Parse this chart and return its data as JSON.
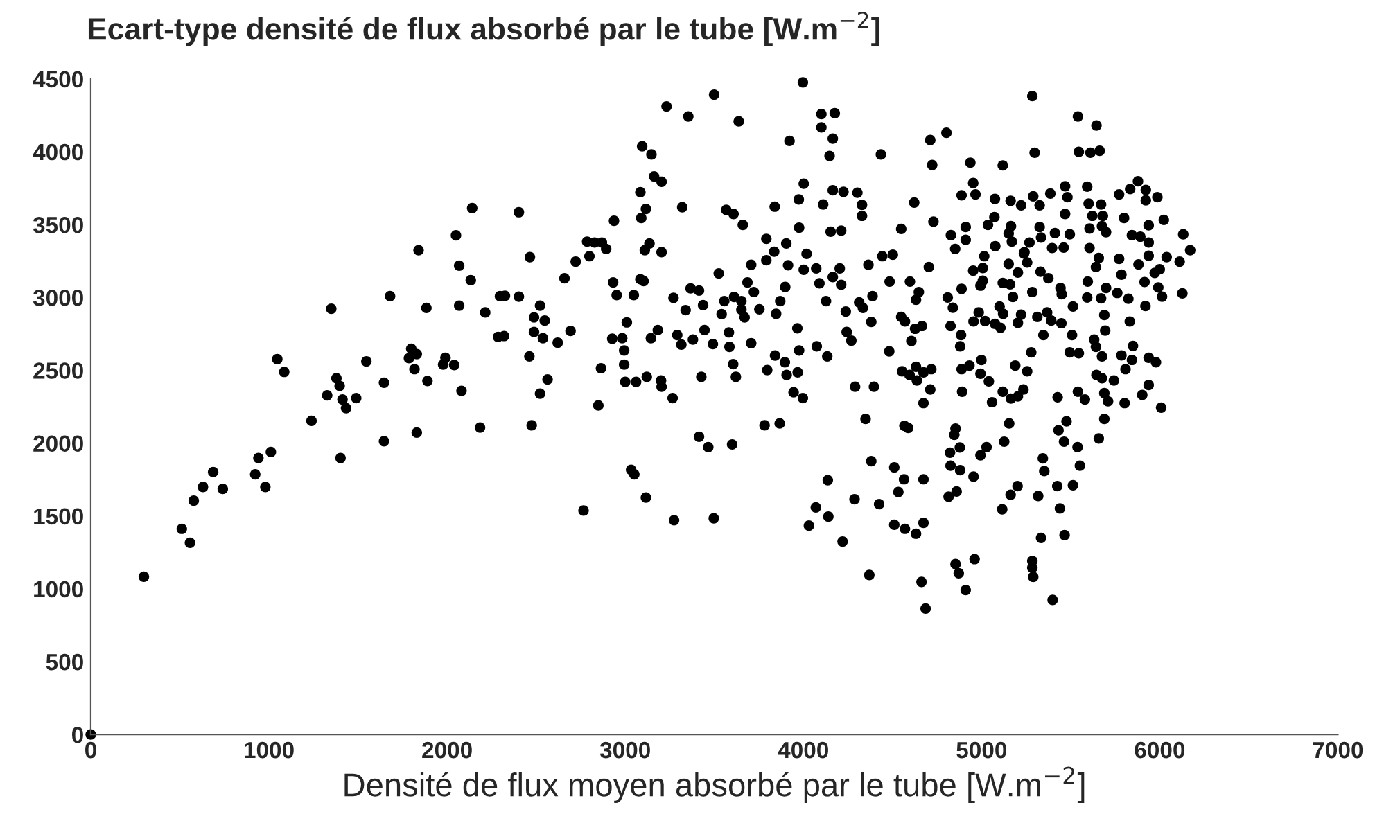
{
  "chart_data": {
    "type": "scatter",
    "title": "Ecart-type densité de flux absorbé par le tube [W.m$^{−2}$]",
    "xlabel": "Densité de flux moyen absorbé par le tube [W.m$^{−2}$]",
    "xlim": [
      0,
      7000
    ],
    "xticks": [
      0,
      1000,
      2000,
      3000,
      4000,
      5000,
      6000,
      7000
    ],
    "ylim": [
      0,
      4500
    ],
    "yticks": [
      0,
      500,
      1000,
      1500,
      2000,
      2500,
      3000,
      3500,
      4000,
      4500
    ],
    "grid": false,
    "marker": "circle",
    "series": [
      {
        "color": "#000000",
        "x": [
          0,
          298,
          511,
          557,
          578,
          630,
          687,
          741,
          923,
          941,
          980,
          1011,
          1047,
          1086,
          1239,
          1327,
          1350,
          1379,
          1397,
          1402,
          1413,
          1433,
          1490,
          1547,
          1646,
          1646,
          1680,
          1786,
          1799,
          1830,
          1817,
          1830,
          1840,
          1884,
          1890,
          1978,
          1991,
          2040,
          2050,
          2068,
          2068,
          2081,
          2133,
          2141,
          2185,
          2214,
          2286,
          2297,
          2403,
          2325,
          2403,
          2320,
          2465,
          2462,
          2475,
          2522,
          2488,
          2548,
          2488,
          2538,
          2522,
          2564,
          2621,
          2693,
          2659,
          2722,
          2786,
          2799,
          2828,
          2869,
          2893,
          2937,
          2932,
          2952,
          2927,
          2983,
          3009,
          2994,
          2994,
          3000,
          3061,
          2864,
          2849,
          2766,
          3033,
          3051,
          3116,
          3095,
          3147,
          3162,
          3204,
          3085,
          3116,
          3090,
          3136,
          3110,
          3204,
          3085,
          3103,
          3048,
          3144,
          3183,
          3121,
          3201,
          3204,
          3266,
          3232,
          3354,
          3499,
          3637,
          3320,
          3271,
          3339,
          3292,
          3315,
          3380,
          3367,
          3414,
          3437,
          3445,
          3427,
          3492,
          3414,
          3466,
          3600,
          3274,
          3497,
          3525,
          3541,
          3556,
          3582,
          3585,
          3606,
          3621,
          3567,
          3608,
          3660,
          3611,
          3652,
          3652,
          3670,
          3686,
          3722,
          3707,
          3707,
          3753,
          3792,
          3792,
          3836,
          3839,
          3904,
          3914,
          3898,
          3870,
          3847,
          3797,
          3841,
          3896,
          3906,
          3968,
          3945,
          3997,
          3782,
          3867,
          3922,
          3997,
          3974,
          4002,
          3976,
          4018,
          4002,
          3966,
          3976,
          4072,
          4090,
          4127,
          4075,
          4134,
          4101,
          4176,
          4101,
          4165,
          4147,
          4111,
          4165,
          4225,
          4303,
          4329,
          4329,
          4153,
          4212,
          4204,
          4165,
          4212,
          4238,
          4243,
          4269,
          4313,
          4334,
          4381,
          4388,
          4365,
          4435,
          4443,
          4502,
          4484,
          4482,
          4290,
          4396,
          4349,
          4137,
          4070,
          4031,
          4140,
          4220,
          4287,
          4381,
          4425,
          4370,
          4510,
          4565,
          4533,
          4510,
          4570,
          4632,
          4674,
          4674,
          4663,
          4686,
          4622,
          4549,
          4598,
          4648,
          4632,
          4549,
          4570,
          4627,
          4666,
          4606,
          4554,
          4596,
          4632,
          4637,
          4674,
          4718,
          4712,
          4674,
          4567,
          4588,
          4712,
          4723,
          4730,
          4704,
          4803,
          4937,
          5119,
          5285,
          5298,
          5541,
          5645,
          5546,
          5611,
          5663,
          4888,
          4953,
          4966,
          5075,
          5163,
          5222,
          5290,
          5326,
          5386,
          5469,
          5482,
          5593,
          5601,
          5671,
          5772,
          5834,
          5878,
          5922,
          5922,
          5987,
          4828,
          4852,
          4911,
          4911,
          5036,
          5072,
          5077,
          5152,
          5165,
          5170,
          5241,
          5269,
          5326,
          5334,
          5396,
          5412,
          5461,
          5469,
          5495,
          5606,
          5606,
          5622,
          5681,
          5676,
          5699,
          5658,
          5642,
          5772,
          5800,
          5844,
          5891,
          5938,
          5938,
          6023,
          6132,
          6171,
          6039,
          6112,
          5938,
          6000,
          5972,
          5881,
          5785,
          5915,
          5992,
          6013,
          6127,
          5920,
          5824,
          5762,
          5699,
          5671,
          5593,
          5596,
          5513,
          5450,
          5443,
          5375,
          5331,
          5285,
          5256,
          5238,
          5204,
          5176,
          5160,
          5119,
          5152,
          5015,
          5007,
          5007,
          4994,
          4953,
          4888,
          4810,
          4839,
          4984,
          4955,
          5020,
          5101,
          5121,
          5075,
          5106,
          5204,
          5222,
          5313,
          5368,
          5391,
          5448,
          5347,
          5508,
          5632,
          5689,
          5694,
          5642,
          5832,
          5850,
          5676,
          5495,
          5546,
          5785,
          5844,
          5938,
          5979,
          5808,
          5645,
          5676,
          5743,
          5938,
          5902,
          5803,
          5710,
          5689,
          5580,
          5541,
          5427,
          5235,
          5204,
          5165,
          5119,
          5059,
          4891,
          5041,
          4994,
          4888,
          4999,
          4932,
          5189,
          5256,
          5279,
          4885,
          4880,
          4826,
          6008,
          5689,
          5658,
          5477,
          5432,
          5463,
          5539,
          5552,
          5513,
          5425,
          5440,
          5466,
          5334,
          5318,
          5352,
          5344,
          5155,
          5127,
          5202,
          5163,
          5116,
          5028,
          4994,
          4955,
          4880,
          4826,
          4823,
          4878,
          4847,
          4854,
          4815,
          4860,
          4854,
          4872,
          4911,
          4961,
          5285,
          5285,
          5290,
          5399
        ],
        "values": [
          0,
          1083,
          1412,
          1316,
          1605,
          1699,
          1802,
          1686,
          1786,
          1898,
          1699,
          1939,
          2577,
          2489,
          2153,
          2328,
          2922,
          2446,
          2393,
          1898,
          2300,
          2240,
          2309,
          2561,
          2415,
          2013,
          3009,
          2583,
          2648,
          2611,
          2508,
          2072,
          3324,
          2928,
          2427,
          2539,
          2586,
          2536,
          3426,
          3218,
          2944,
          2359,
          3118,
          3613,
          2107,
          2897,
          2729,
          3009,
          3585,
          3012,
          3006,
          2735,
          3277,
          2595,
          2122,
          2944,
          2863,
          2841,
          2763,
          2720,
          2340,
          2437,
          2689,
          2770,
          3131,
          3246,
          3383,
          3283,
          3377,
          3377,
          3333,
          3526,
          3103,
          3016,
          2717,
          2720,
          2829,
          2636,
          2539,
          2421,
          2421,
          2514,
          2259,
          1537,
          1817,
          1786,
          1627,
          4037,
          3981,
          3831,
          3794,
          3722,
          3607,
          3545,
          3370,
          3324,
          3311,
          3125,
          3112,
          3016,
          2720,
          2776,
          2455,
          2430,
          2387,
          2309,
          4311,
          4242,
          4392,
          4208,
          3619,
          2997,
          2913,
          2742,
          2676,
          2711,
          3062,
          3047,
          2947,
          2776,
          2455,
          2680,
          2044,
          1973,
          1991,
          1471,
          1484,
          3165,
          2885,
          2975,
          2760,
          2661,
          2542,
          2455,
          3601,
          3573,
          3498,
          3003,
          2975,
          2916,
          2863,
          3103,
          3037,
          3224,
          2686,
          2919,
          3402,
          3255,
          3314,
          3623,
          3370,
          3221,
          3072,
          2975,
          2888,
          2502,
          2601,
          2555,
          2468,
          2486,
          2349,
          2309,
          2122,
          2135,
          4074,
          4476,
          3672,
          3781,
          3479,
          3299,
          3190,
          2788,
          2636,
          3199,
          3097,
          2975,
          2664,
          2595,
          4258,
          4264,
          4167,
          4090,
          3971,
          3638,
          3735,
          3725,
          3719,
          3635,
          3560,
          3451,
          3458,
          3199,
          3140,
          3087,
          2903,
          2763,
          2704,
          2966,
          2928,
          2832,
          3009,
          3224,
          3981,
          3283,
          3293,
          3109,
          2630,
          2387,
          2387,
          2166,
          1746,
          1559,
          1434,
          1496,
          1325,
          1615,
          1876,
          1581,
          1095,
          1833,
          1752,
          1665,
          1440,
          1412,
          1378,
          1453,
          1752,
          1048,
          865,
          3651,
          3470,
          3109,
          3037,
          2984,
          2866,
          2835,
          2785,
          2804,
          2701,
          2493,
          2468,
          2524,
          2430,
          2486,
          2508,
          2368,
          2275,
          2119,
          2104,
          4080,
          3909,
          3520,
          3209,
          4130,
          3925,
          3906,
          4382,
          3993,
          4242,
          4180,
          3999,
          3993,
          4006,
          3701,
          3785,
          3707,
          3676,
          3663,
          3632,
          3694,
          3632,
          3713,
          3763,
          3688,
          3760,
          3644,
          3638,
          3707,
          3744,
          3797,
          3738,
          3666,
          3688,
          3427,
          3333,
          3483,
          3395,
          3498,
          3551,
          3352,
          3439,
          3489,
          3383,
          3311,
          3377,
          3483,
          3411,
          3339,
          3442,
          3342,
          3573,
          3433,
          3473,
          3339,
          3560,
          3560,
          3489,
          3448,
          3271,
          3209,
          3265,
          3545,
          3427,
          3417,
          3495,
          3377,
          3532,
          3433,
          3324,
          3277,
          3246,
          3286,
          3193,
          3168,
          3227,
          3156,
          3106,
          3069,
          3006,
          3028,
          2941,
          2991,
          3031,
          3065,
          2994,
          3000,
          3109,
          2938,
          3022,
          3065,
          3131,
          3177,
          3037,
          3240,
          3302,
          3171,
          3003,
          3090,
          3100,
          3230,
          3283,
          3202,
          3115,
          3081,
          3184,
          3059,
          3000,
          2929,
          2897,
          2835,
          2838,
          2938,
          2888,
          2819,
          2792,
          2826,
          2882,
          2866,
          2897,
          2841,
          2823,
          2742,
          2742,
          2711,
          2879,
          2773,
          2661,
          2835,
          2667,
          2595,
          2623,
          2617,
          2602,
          2571,
          2586,
          2555,
          2508,
          2468,
          2446,
          2430,
          2399,
          2331,
          2275,
          2287,
          2343,
          2300,
          2353,
          2315,
          2368,
          2321,
          2306,
          2353,
          2281,
          2353,
          2424,
          2477,
          2508,
          2570,
          2533,
          2533,
          2493,
          2623,
          2742,
          2664,
          2804,
          2244,
          2166,
          2032,
          2150,
          2088,
          2010,
          1973,
          1845,
          1711,
          1705,
          1552,
          1369,
          1350,
          1637,
          1808,
          1895,
          2135,
          2010,
          1705,
          1646,
          1546,
          1973,
          1917,
          1770,
          1814,
          1845,
          1935,
          1970,
          2057,
          2100,
          1633,
          1668,
          1170,
          1107,
          992,
          1204,
          1191,
          1145,
          1082,
          924
        ]
      }
    ]
  }
}
